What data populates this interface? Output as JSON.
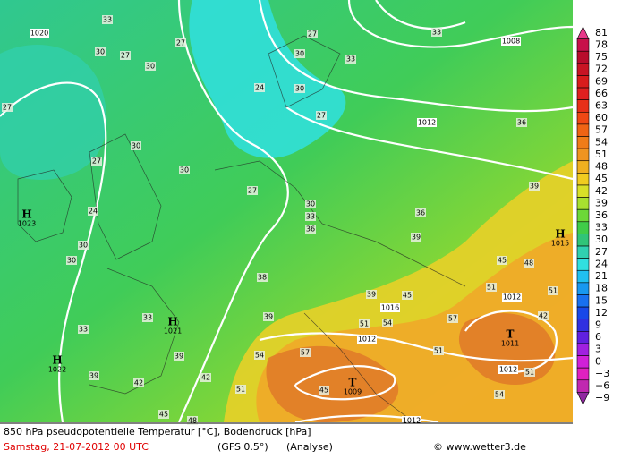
{
  "map": {
    "scale": [
      {
        "label": "81",
        "color": "#e8388a"
      },
      {
        "label": "78",
        "color": "#c8104a"
      },
      {
        "label": "75",
        "color": "#b80c2c"
      },
      {
        "label": "72",
        "color": "#c81424"
      },
      {
        "label": "69",
        "color": "#d81c1c"
      },
      {
        "label": "66",
        "color": "#e02020"
      },
      {
        "label": "63",
        "color": "#e83018"
      },
      {
        "label": "60",
        "color": "#f04814"
      },
      {
        "label": "57",
        "color": "#f06414"
      },
      {
        "label": "54",
        "color": "#f07c18"
      },
      {
        "label": "51",
        "color": "#f09420"
      },
      {
        "label": "48",
        "color": "#f0b020"
      },
      {
        "label": "45",
        "color": "#f0cc20"
      },
      {
        "label": "42",
        "color": "#d8e028"
      },
      {
        "label": "39",
        "color": "#a8e030"
      },
      {
        "label": "36",
        "color": "#6cd838"
      },
      {
        "label": "33",
        "color": "#40cc48"
      },
      {
        "label": "30",
        "color": "#30c478"
      },
      {
        "label": "27",
        "color": "#30d0b0"
      },
      {
        "label": "24",
        "color": "#30e0e0"
      },
      {
        "label": "21",
        "color": "#20c0f0"
      },
      {
        "label": "18",
        "color": "#1898f0"
      },
      {
        "label": "15",
        "color": "#1870f0"
      },
      {
        "label": "12",
        "color": "#1848e8"
      },
      {
        "label": "9",
        "color": "#3030e0"
      },
      {
        "label": "6",
        "color": "#6020e0"
      },
      {
        "label": "3",
        "color": "#a020e0"
      },
      {
        "label": "0",
        "color": "#d020d8"
      },
      {
        "label": "−3",
        "color": "#e020c0"
      },
      {
        "label": "−6",
        "color": "#c028b0"
      },
      {
        "label": "−9",
        "color": "#9028a0"
      }
    ],
    "pressure_centers": [
      {
        "symbol": "H",
        "value": "1023"
      },
      {
        "symbol": "H",
        "value": "1015"
      },
      {
        "symbol": "H",
        "value": "1021"
      },
      {
        "symbol": "H",
        "value": "1022"
      },
      {
        "symbol": "T",
        "value": "1011"
      },
      {
        "symbol": "T",
        "value": "1009"
      }
    ],
    "isobar_labels": [
      "1020",
      "1008",
      "1012",
      "1016",
      "1012",
      "1012",
      "1012",
      "1012"
    ],
    "temperature_labels": [
      "33",
      "27",
      "30",
      "27",
      "30",
      "27",
      "30",
      "27",
      "30",
      "24",
      "27",
      "30",
      "33",
      "33",
      "36",
      "24",
      "30",
      "27",
      "27",
      "30",
      "33",
      "36",
      "36",
      "39",
      "39",
      "30",
      "30",
      "33",
      "33",
      "39",
      "39",
      "42",
      "42",
      "45",
      "48",
      "38",
      "39",
      "45",
      "39",
      "48",
      "45",
      "51",
      "51",
      "57",
      "51",
      "54",
      "51",
      "57",
      "51",
      "54",
      "51",
      "45",
      "54",
      "42"
    ],
    "footer": {
      "title": "850 hPa pseudopotentielle Temperatur [°C], Bodendruck [hPa]",
      "date": "Samstag, 21-07-2012  00 UTC",
      "model": "(GFS 0.5°)",
      "run": "(Analyse)",
      "credit": "© www.wetter3.de"
    }
  }
}
